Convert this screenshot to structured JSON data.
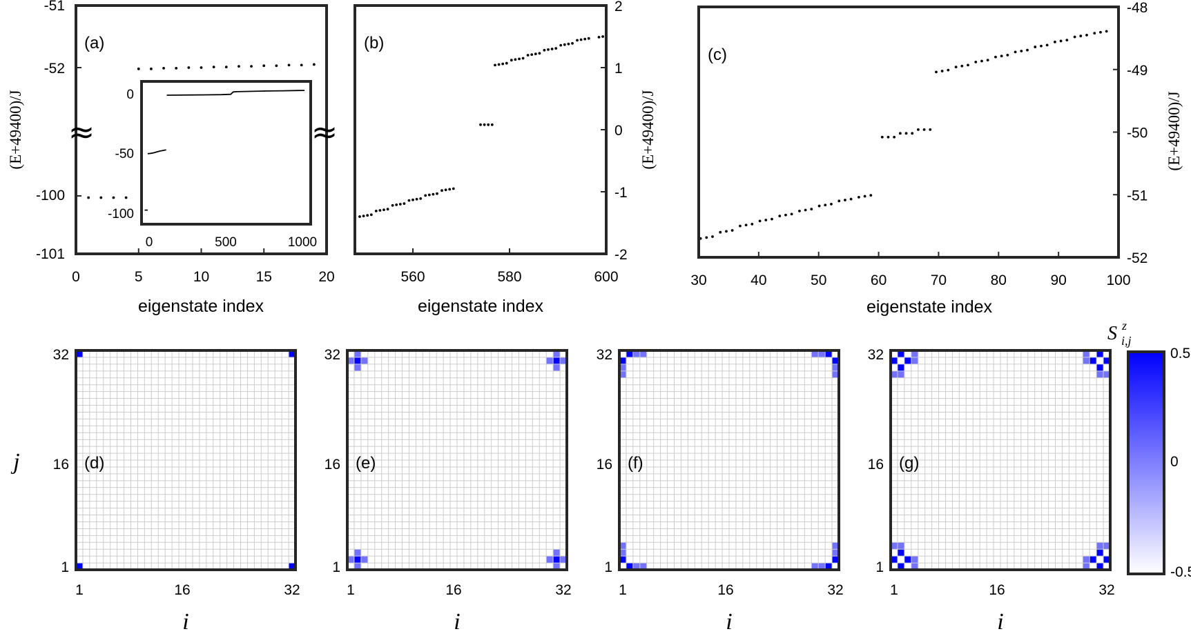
{
  "chart_data": [
    {
      "type": "scatter",
      "panel": "(a)",
      "xlabel": "eigenstate index",
      "ylabel": "(E+49400)/J",
      "xlim": [
        0,
        20
      ],
      "xticks": [
        "0",
        "5",
        "10",
        "15",
        "20"
      ],
      "broken_axis": true,
      "yticks_upper": [
        "-51",
        "-52"
      ],
      "yticks_lower": [
        "-100",
        "-101"
      ],
      "break_symbol": "≈",
      "points": {
        "lower_segment": {
          "x": [
            1,
            2,
            3,
            4
          ],
          "y": [
            -100.03,
            -100.03,
            -100.03,
            -100.03
          ]
        },
        "upper_segment": {
          "x": [
            5,
            6,
            7,
            8,
            9,
            10,
            11,
            12,
            13,
            14,
            15,
            16,
            17,
            18,
            19,
            20
          ],
          "y": [
            -52.02,
            -52.02,
            -52.01,
            -52.01,
            -52.0,
            -52.0,
            -51.99,
            -51.99,
            -51.98,
            -51.98,
            -51.97,
            -51.97,
            -51.96,
            -51.96,
            -51.95,
            -51.95
          ]
        }
      },
      "inset": {
        "type": "line",
        "xlim": [
          -20,
          1080
        ],
        "ylim": [
          -112,
          10
        ],
        "xticks": [
          "0",
          "500",
          "1000"
        ],
        "yticks": [
          "0",
          "-50",
          "-100"
        ],
        "segments": [
          {
            "x": [
              0,
              20
            ],
            "y": [
              -100,
              -100
            ]
          },
          {
            "x": [
              20,
              40,
              60,
              80,
              100,
              120,
              140
            ],
            "y": [
              -51.8,
              -51.5,
              -51.0,
              -50.2,
              -49.5,
              -49.0,
              -48.5
            ]
          },
          {
            "x": [
              144,
              200,
              300,
              400,
              500,
              560,
              576,
              600,
              700,
              800,
              900,
              1000,
              1040
            ],
            "y": [
              -1.8,
              -1.7,
              -1.6,
              -1.5,
              -1.3,
              -1.0,
              1.0,
              1.2,
              1.5,
              1.8,
              2.0,
              2.2,
              2.3
            ]
          }
        ]
      }
    },
    {
      "type": "scatter",
      "panel": "(b)",
      "xlabel": "eigenstate index",
      "ylabel": "(E+49400)/J",
      "xlim": [
        548,
        600
      ],
      "ylim": [
        -2,
        2
      ],
      "xticks": [
        "560",
        "580",
        "600"
      ],
      "yticks": [
        "2",
        "1",
        "0",
        "-1",
        "-2"
      ],
      "y_axis": "right"
    },
    {
      "type": "scatter",
      "panel": "(c)",
      "xlabel": "eigenstate index",
      "ylabel": "(E+49400)/J",
      "xlim": [
        30,
        100
      ],
      "ylim": [
        -52,
        -48
      ],
      "xticks": [
        "30",
        "40",
        "50",
        "60",
        "70",
        "80",
        "90",
        "100"
      ],
      "yticks": [
        "-48",
        "-49",
        "-50",
        "-51",
        "-52"
      ],
      "y_axis": "right"
    },
    {
      "type": "heatmap",
      "panels": [
        "(d)",
        "(e)",
        "(f)",
        "(g)"
      ],
      "grid_size": 32,
      "xlabel": "i",
      "ylabel": "j",
      "ticks": [
        "1",
        "16",
        "32"
      ],
      "colorbar": {
        "title": "S",
        "title_sub": "i,j",
        "title_sup": "z",
        "ticks": [
          "0.5",
          "0",
          "-0.5"
        ],
        "range": [
          -0.5,
          0.5
        ],
        "color_low": "#ffffff",
        "color_high": "#0000ff"
      },
      "maps": [
        {
          "cells": [
            [
              1,
              1,
              0.5
            ],
            [
              32,
              1,
              0.5
            ],
            [
              1,
              32,
              0.5
            ],
            [
              32,
              32,
              0.5
            ]
          ]
        },
        {
          "cells": [
            [
              2,
              2,
              0.5
            ],
            [
              31,
              2,
              0.5
            ],
            [
              2,
              31,
              0.5
            ],
            [
              31,
              31,
              0.5
            ],
            [
              1,
              2,
              0.05
            ],
            [
              2,
              1,
              0.05
            ],
            [
              3,
              2,
              0.05
            ],
            [
              2,
              3,
              0.05
            ],
            [
              30,
              2,
              0.05
            ],
            [
              32,
              2,
              0.05
            ],
            [
              31,
              1,
              0.05
            ],
            [
              31,
              3,
              0.05
            ],
            [
              1,
              31,
              0.05
            ],
            [
              2,
              30,
              0.05
            ],
            [
              3,
              31,
              0.05
            ],
            [
              2,
              32,
              0.05
            ],
            [
              30,
              31,
              0.05
            ],
            [
              32,
              31,
              0.05
            ],
            [
              31,
              30,
              0.05
            ],
            [
              31,
              32,
              0.05
            ]
          ]
        },
        {
          "cells": [
            [
              1,
              2,
              0.5
            ],
            [
              2,
              1,
              0.5
            ],
            [
              31,
              1,
              0.5
            ],
            [
              32,
              2,
              0.5
            ],
            [
              1,
              31,
              0.5
            ],
            [
              2,
              32,
              0.5
            ],
            [
              31,
              32,
              0.5
            ],
            [
              32,
              31,
              0.5
            ],
            [
              1,
              3,
              0.05
            ],
            [
              3,
              1,
              0.05
            ],
            [
              4,
              1,
              0.05
            ],
            [
              1,
              4,
              0.05
            ],
            [
              30,
              1,
              0.05
            ],
            [
              32,
              3,
              0.05
            ],
            [
              29,
              1,
              0.05
            ],
            [
              32,
              4,
              0.05
            ],
            [
              1,
              30,
              0.05
            ],
            [
              3,
              32,
              0.05
            ],
            [
              1,
              29,
              0.05
            ],
            [
              4,
              32,
              0.05
            ],
            [
              30,
              32,
              0.05
            ],
            [
              32,
              30,
              0.05
            ],
            [
              29,
              32,
              0.05
            ],
            [
              32,
              29,
              0.05
            ]
          ]
        },
        {
          "cells": [
            [
              1,
              2,
              0.5
            ],
            [
              2,
              1,
              0.5
            ],
            [
              2,
              3,
              0.5
            ],
            [
              3,
              2,
              0.5
            ],
            [
              31,
              1,
              0.5
            ],
            [
              32,
              2,
              0.5
            ],
            [
              30,
              2,
              0.5
            ],
            [
              31,
              3,
              0.5
            ],
            [
              1,
              31,
              0.5
            ],
            [
              2,
              32,
              0.5
            ],
            [
              2,
              30,
              0.5
            ],
            [
              3,
              31,
              0.5
            ],
            [
              31,
              32,
              0.5
            ],
            [
              32,
              31,
              0.5
            ],
            [
              30,
              31,
              0.5
            ],
            [
              31,
              30,
              0.5
            ],
            [
              1,
              4,
              0.05
            ],
            [
              4,
              1,
              0.05
            ],
            [
              4,
              2,
              0.05
            ],
            [
              2,
              4,
              0.05
            ],
            [
              29,
              1,
              0.05
            ],
            [
              32,
              4,
              0.05
            ],
            [
              29,
              2,
              0.05
            ],
            [
              31,
              4,
              0.05
            ],
            [
              1,
              29,
              0.05
            ],
            [
              4,
              32,
              0.05
            ],
            [
              2,
              29,
              0.05
            ],
            [
              4,
              31,
              0.05
            ],
            [
              29,
              32,
              0.05
            ],
            [
              32,
              29,
              0.05
            ],
            [
              29,
              31,
              0.05
            ],
            [
              31,
              29,
              0.05
            ]
          ]
        }
      ]
    }
  ]
}
